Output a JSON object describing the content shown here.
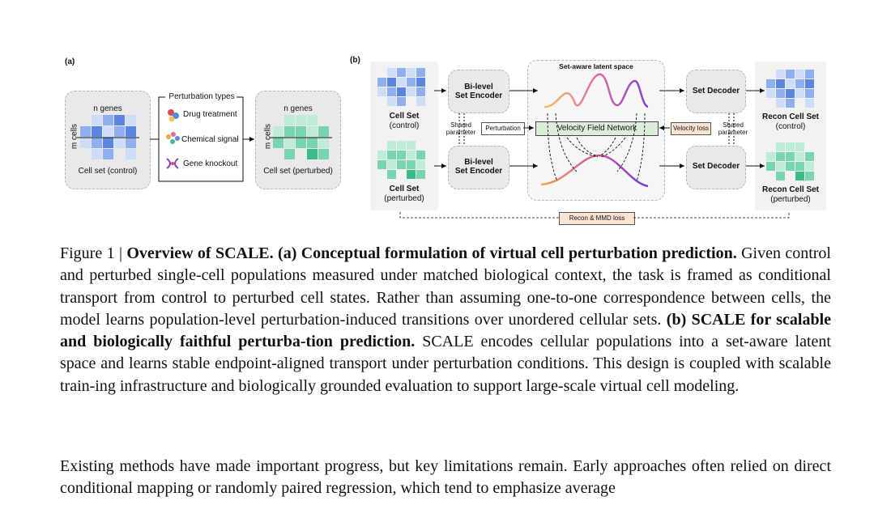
{
  "panel_a": {
    "label": "(a)",
    "control": {
      "genes": "n genes",
      "cells": "m cells",
      "caption": "Cell set (control)"
    },
    "types_title": "Perturbation types",
    "types": [
      "Drug treatment",
      "Chemical signal",
      "Gene knockout"
    ],
    "perturbed": {
      "genes": "n genes",
      "cells": "m cells",
      "caption": "Cell set (perturbed)"
    }
  },
  "panel_b": {
    "label": "(b)",
    "latent_title": "Set-aware latent space",
    "cell_set_control": {
      "title": "Cell Set",
      "sub": "(control)"
    },
    "cell_set_perturbed": {
      "title": "Cell Set",
      "sub": "(perturbed)"
    },
    "encoder_top": {
      "line1": "Bi-level",
      "line2": "Set Encoder"
    },
    "encoder_bottom": {
      "line1": "Bi-level",
      "line2": "Set Encoder"
    },
    "shared_left": {
      "line1": "Shared",
      "line2": "parameter"
    },
    "shared_right": {
      "line1": "Shared",
      "line2": "parameter"
    },
    "perturbation": "Perturbation",
    "velocity_network": "Velocity Field Network",
    "velocity_loss": "Velocity loss",
    "decoder_top": "Set Decoder",
    "decoder_bottom": "Set Decoder",
    "recon_control": {
      "title": "Recon Cell Set",
      "sub": "(control)"
    },
    "recon_perturbed": {
      "title": "Recon Cell Set",
      "sub": "(perturbed)"
    },
    "recon_loss": "Recon & MMD loss"
  },
  "caption": {
    "prefix": "Figure 1 | ",
    "bold1": "Overview of SCALE. (a) Conceptual formulation of virtual cell perturbation prediction.",
    "text1": " Given control and perturbed single-cell populations measured under matched biological context, the task is framed as conditional transport from control to perturbed cell states. Rather than assuming one-to-one correspondence between cells, the model learns population-level perturbation-induced transitions over unordered cellular sets. ",
    "bold2": "(b) SCALE for scalable and biologically faithful perturba-tion prediction.",
    "text2": " SCALE encodes cellular populations into a set-aware latent space and learns stable endpoint-aligned transport under perturbation conditions. This design is coupled with scalable train-ing infrastructure and biologically grounded evaluation to support large-scale virtual cell modeling."
  },
  "paragraph": "Existing methods have made important progress, but key limitations remain. Early approaches often relied on direct conditional mapping or randomly paired regression, which tend to emphasize average",
  "colors": {
    "blue_dark": "#5b86e0",
    "blue_mid": "#8fb0ee",
    "blue_light": "#cddcf8",
    "green_dark": "#3dbb86",
    "green_mid": "#77d6ad",
    "green_light": "#bfecd7",
    "velocity_box": "#dbefd8",
    "loss_box": "#fbe3d2"
  }
}
